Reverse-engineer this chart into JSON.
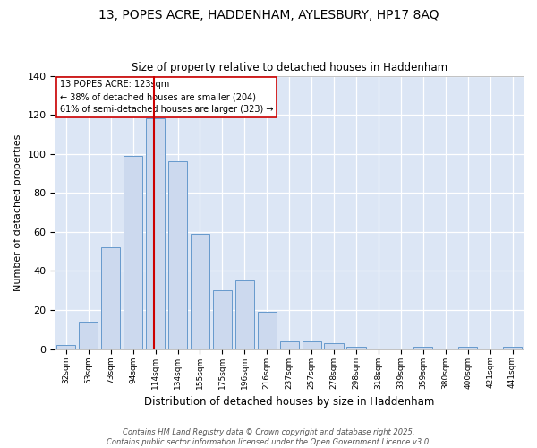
{
  "title1": "13, POPES ACRE, HADDENHAM, AYLESBURY, HP17 8AQ",
  "title2": "Size of property relative to detached houses in Haddenham",
  "xlabel": "Distribution of detached houses by size in Haddenham",
  "ylabel": "Number of detached properties",
  "categories": [
    "32sqm",
    "53sqm",
    "73sqm",
    "94sqm",
    "114sqm",
    "134sqm",
    "155sqm",
    "175sqm",
    "196sqm",
    "216sqm",
    "237sqm",
    "257sqm",
    "278sqm",
    "298sqm",
    "318sqm",
    "339sqm",
    "359sqm",
    "380sqm",
    "400sqm",
    "421sqm",
    "441sqm"
  ],
  "bar_heights": [
    2,
    14,
    52,
    99,
    118,
    96,
    59,
    30,
    35,
    19,
    4,
    4,
    3,
    1,
    0,
    0,
    1,
    0,
    1,
    0,
    1
  ],
  "bar_color": "#ccd9ee",
  "bar_edge_color": "#6699cc",
  "property_bin_index": 4,
  "marker_color": "#cc0000",
  "annotation_title": "13 POPES ACRE: 123sqm",
  "annotation_line1": "← 38% of detached houses are smaller (204)",
  "annotation_line2": "61% of semi-detached houses are larger (323) →",
  "annotation_box_color": "#ffffff",
  "annotation_box_edge": "#cc0000",
  "ylim": [
    0,
    140
  ],
  "yticks": [
    0,
    20,
    40,
    60,
    80,
    100,
    120,
    140
  ],
  "plot_bg_color": "#dce6f5",
  "fig_bg_color": "#ffffff",
  "footer": "Contains HM Land Registry data © Crown copyright and database right 2025.\nContains public sector information licensed under the Open Government Licence v3.0.",
  "grid_color": "#ffffff",
  "title1_fontsize": 10,
  "title2_fontsize": 8.5,
  "ylabel_fontsize": 8,
  "xlabel_fontsize": 8.5,
  "tick_fontsize": 6.5,
  "footer_fontsize": 6
}
